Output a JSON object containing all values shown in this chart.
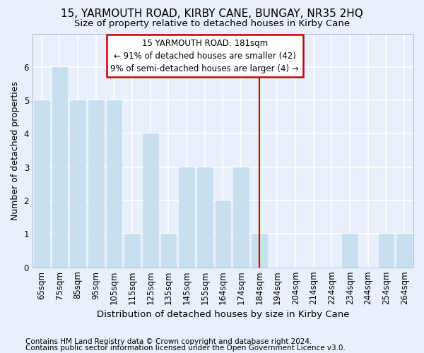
{
  "title": "15, YARMOUTH ROAD, KIRBY CANE, BUNGAY, NR35 2HQ",
  "subtitle": "Size of property relative to detached houses in Kirby Cane",
  "xlabel": "Distribution of detached houses by size in Kirby Cane",
  "ylabel": "Number of detached properties",
  "categories": [
    "65sqm",
    "75sqm",
    "85sqm",
    "95sqm",
    "105sqm",
    "115sqm",
    "125sqm",
    "135sqm",
    "145sqm",
    "155sqm",
    "164sqm",
    "174sqm",
    "184sqm",
    "194sqm",
    "204sqm",
    "214sqm",
    "224sqm",
    "234sqm",
    "244sqm",
    "254sqm",
    "264sqm"
  ],
  "values": [
    5,
    6,
    5,
    5,
    5,
    1,
    4,
    1,
    3,
    3,
    2,
    3,
    1,
    0,
    0,
    0,
    0,
    1,
    0,
    1,
    1
  ],
  "bar_color": "#c8dff0",
  "bar_edgecolor": "#c8dff0",
  "background_color": "#e8f0fb",
  "grid_color": "#ffffff",
  "red_line_index": 12,
  "red_line_color": "#cc0000",
  "annotation_line1": "15 YARMOUTH ROAD: 181sqm",
  "annotation_line2": "← 91% of detached houses are smaller (42)",
  "annotation_line3": "9% of semi-detached houses are larger (4) →",
  "annotation_box_color": "#cc0000",
  "footnote1": "Contains HM Land Registry data © Crown copyright and database right 2024.",
  "footnote2": "Contains public sector information licensed under the Open Government Licence v3.0.",
  "ylim": [
    0,
    7
  ],
  "yticks": [
    0,
    1,
    2,
    3,
    4,
    5,
    6,
    7
  ],
  "title_fontsize": 11,
  "subtitle_fontsize": 9.5,
  "axis_label_fontsize": 9,
  "tick_fontsize": 8.5,
  "annotation_fontsize": 8.5,
  "footnote_fontsize": 7.5
}
